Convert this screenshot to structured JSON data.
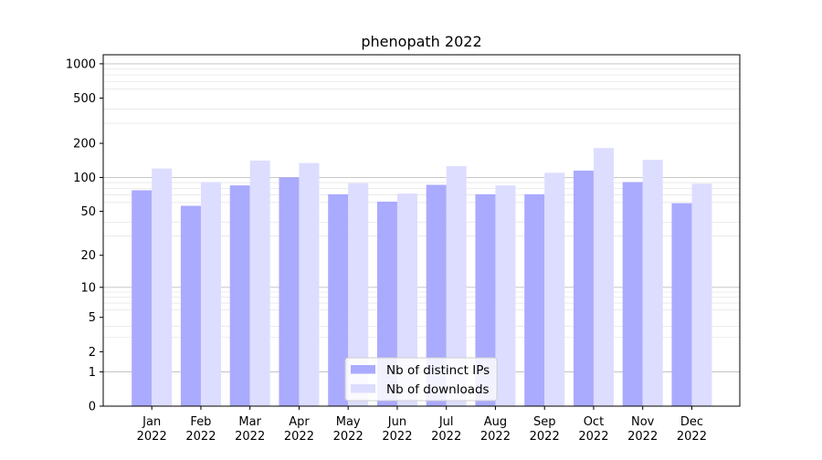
{
  "chart_data": {
    "type": "bar",
    "title": "phenopath 2022",
    "xlabel": "",
    "ylabel": "",
    "y_scale": "log1p",
    "ylim": [
      0,
      1200
    ],
    "y_ticks": [
      0,
      1,
      2,
      5,
      10,
      20,
      50,
      100,
      200,
      500,
      1000
    ],
    "y_tick_labels": [
      "0",
      "1",
      "2",
      "5",
      "10",
      "20",
      "50",
      "100",
      "200",
      "500",
      "1000"
    ],
    "categories": [
      "Jan\n2022",
      "Feb\n2022",
      "Mar\n2022",
      "Apr\n2022",
      "May\n2022",
      "Jun\n2022",
      "Jul\n2022",
      "Aug\n2022",
      "Sep\n2022",
      "Oct\n2022",
      "Nov\n2022",
      "Dec\n2022"
    ],
    "series": [
      {
        "name": "Nb of distinct IPs",
        "color": "#aaaaff",
        "values": [
          77,
          56,
          85,
          100,
          71,
          61,
          86,
          71,
          71,
          115,
          91,
          59
        ]
      },
      {
        "name": "Nb of downloads",
        "color": "#ddddff",
        "values": [
          120,
          91,
          141,
          134,
          89,
          72,
          126,
          85,
          110,
          182,
          143,
          88
        ]
      }
    ],
    "grid": true,
    "legend_position": "lower center"
  }
}
